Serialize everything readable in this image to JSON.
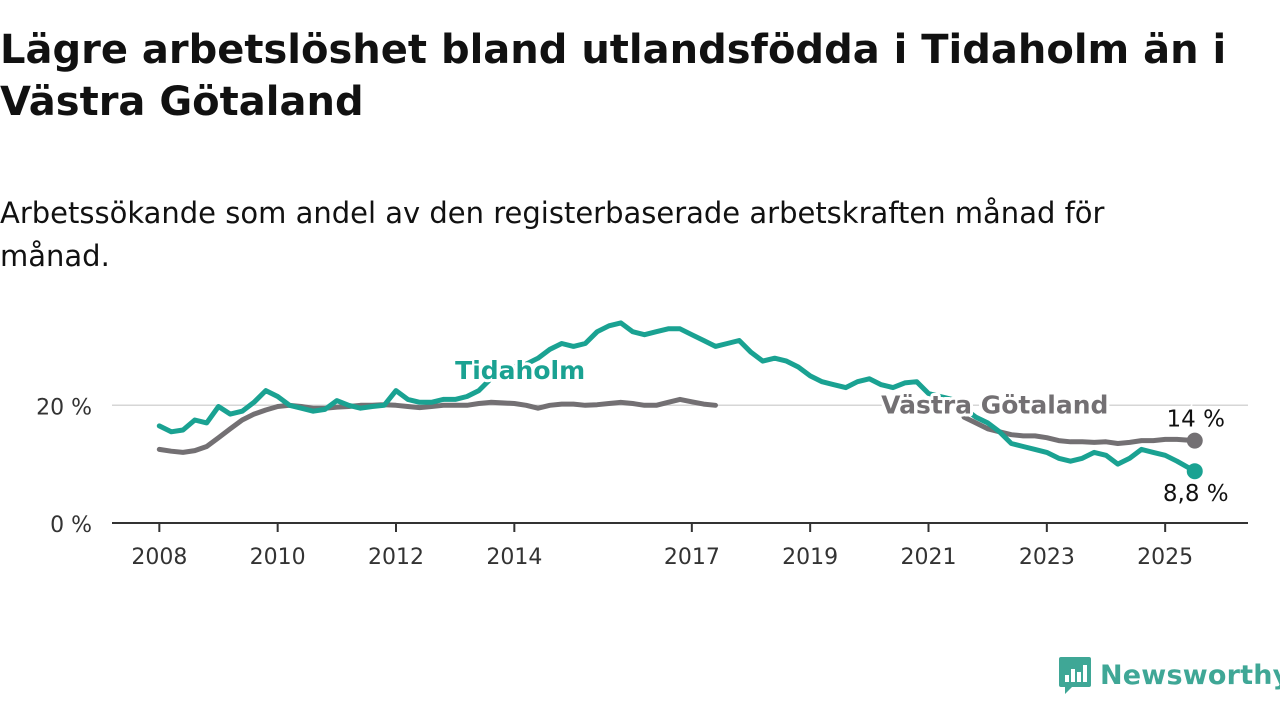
{
  "brand": {
    "name": "Newsworthy",
    "color": "#3fa796",
    "icon": "newsworthy-logo-icon"
  },
  "chart_data": {
    "type": "line",
    "title": "Lägre arbetslöshet bland utlandsfödda i Tidaholm än i Västra Götaland",
    "subtitle": "Arbetssökande som andel av den registerbaserade arbetskraften månad för månad.",
    "xlabel": "",
    "ylabel": "",
    "ylim": [
      0,
      35
    ],
    "y_ticks": [
      0,
      20
    ],
    "y_tick_labels": [
      "0 %",
      "20 %"
    ],
    "x_ticks": [
      2008,
      2010,
      2012,
      2014,
      2017,
      2019,
      2021,
      2023,
      2025
    ],
    "x_tick_labels": [
      "2008",
      "2010",
      "2012",
      "2014",
      "2017",
      "2019",
      "2021",
      "2023",
      "2025"
    ],
    "xlim": [
      2007.2,
      2026.4
    ],
    "grid": "horizontal",
    "legend": "inline labels",
    "series": [
      {
        "name": "Tidaholm",
        "color": "#1aa292",
        "end_label": "8,8 %",
        "points": [
          [
            2008.0,
            16.5
          ],
          [
            2008.2,
            15.5
          ],
          [
            2008.4,
            15.8
          ],
          [
            2008.6,
            17.5
          ],
          [
            2008.8,
            17.0
          ],
          [
            2009.0,
            19.8
          ],
          [
            2009.2,
            18.5
          ],
          [
            2009.4,
            19.0
          ],
          [
            2009.6,
            20.5
          ],
          [
            2009.8,
            22.5
          ],
          [
            2010.0,
            21.5
          ],
          [
            2010.2,
            20.0
          ],
          [
            2010.4,
            19.5
          ],
          [
            2010.6,
            19.0
          ],
          [
            2010.8,
            19.3
          ],
          [
            2011.0,
            20.8
          ],
          [
            2011.2,
            20.0
          ],
          [
            2011.4,
            19.5
          ],
          [
            2011.6,
            19.8
          ],
          [
            2011.8,
            20.0
          ],
          [
            2012.0,
            22.5
          ],
          [
            2012.2,
            21.0
          ],
          [
            2012.4,
            20.5
          ],
          [
            2012.6,
            20.5
          ],
          [
            2012.8,
            21.0
          ],
          [
            2013.0,
            21.0
          ],
          [
            2013.2,
            21.5
          ],
          [
            2013.4,
            22.5
          ],
          [
            2013.6,
            24.5
          ],
          [
            2013.8,
            26.0
          ],
          [
            2014.0,
            26.5
          ],
          [
            2014.2,
            27.0
          ],
          [
            2014.4,
            28.0
          ],
          [
            2014.6,
            29.5
          ],
          [
            2014.8,
            30.5
          ],
          [
            2015.0,
            30.0
          ],
          [
            2015.2,
            30.5
          ],
          [
            2015.4,
            32.5
          ],
          [
            2015.6,
            33.5
          ],
          [
            2015.8,
            34.0
          ],
          [
            2016.0,
            32.5
          ],
          [
            2016.2,
            32.0
          ],
          [
            2016.4,
            32.5
          ],
          [
            2016.6,
            33.0
          ],
          [
            2016.8,
            33.0
          ],
          [
            2017.0,
            32.0
          ],
          [
            2017.2,
            31.0
          ],
          [
            2017.4,
            30.0
          ],
          [
            2017.6,
            30.5
          ],
          [
            2017.8,
            31.0
          ],
          [
            2018.0,
            29.0
          ],
          [
            2018.2,
            27.5
          ],
          [
            2018.4,
            28.0
          ],
          [
            2018.6,
            27.5
          ],
          [
            2018.8,
            26.5
          ],
          [
            2019.0,
            25.0
          ],
          [
            2019.2,
            24.0
          ],
          [
            2019.4,
            23.5
          ],
          [
            2019.6,
            23.0
          ],
          [
            2019.8,
            24.0
          ],
          [
            2020.0,
            24.5
          ],
          [
            2020.2,
            23.5
          ],
          [
            2020.4,
            23.0
          ],
          [
            2020.6,
            23.8
          ],
          [
            2020.8,
            24.0
          ],
          [
            2021.0,
            22.0
          ],
          [
            2021.2,
            21.5
          ],
          [
            2021.4,
            21.0
          ],
          [
            2021.6,
            19.5
          ],
          [
            2021.8,
            18.0
          ],
          [
            2022.0,
            17.0
          ],
          [
            2022.2,
            15.5
          ],
          [
            2022.4,
            13.5
          ],
          [
            2022.6,
            13.0
          ],
          [
            2022.8,
            12.5
          ],
          [
            2023.0,
            12.0
          ],
          [
            2023.2,
            11.0
          ],
          [
            2023.4,
            10.5
          ],
          [
            2023.6,
            11.0
          ],
          [
            2023.8,
            12.0
          ],
          [
            2024.0,
            11.5
          ],
          [
            2024.2,
            10.0
          ],
          [
            2024.4,
            11.0
          ],
          [
            2024.6,
            12.5
          ],
          [
            2024.8,
            12.0
          ],
          [
            2025.0,
            11.5
          ],
          [
            2025.2,
            10.5
          ],
          [
            2025.5,
            8.8
          ]
        ]
      },
      {
        "name": "Västra Götaland",
        "color": "#737073",
        "end_label": "14 %",
        "points": [
          [
            2008.0,
            12.5
          ],
          [
            2008.2,
            12.2
          ],
          [
            2008.4,
            12.0
          ],
          [
            2008.6,
            12.3
          ],
          [
            2008.8,
            13.0
          ],
          [
            2009.0,
            14.5
          ],
          [
            2009.2,
            16.0
          ],
          [
            2009.4,
            17.5
          ],
          [
            2009.6,
            18.5
          ],
          [
            2009.8,
            19.2
          ],
          [
            2010.0,
            19.8
          ],
          [
            2010.2,
            20.0
          ],
          [
            2010.4,
            19.8
          ],
          [
            2010.6,
            19.5
          ],
          [
            2010.8,
            19.5
          ],
          [
            2011.0,
            19.7
          ],
          [
            2011.2,
            19.8
          ],
          [
            2011.4,
            20.0
          ],
          [
            2011.6,
            20.0
          ],
          [
            2011.8,
            20.1
          ],
          [
            2012.0,
            20.0
          ],
          [
            2012.2,
            19.8
          ],
          [
            2012.4,
            19.6
          ],
          [
            2012.6,
            19.8
          ],
          [
            2012.8,
            20.0
          ],
          [
            2013.0,
            20.0
          ],
          [
            2013.2,
            20.0
          ],
          [
            2013.4,
            20.3
          ],
          [
            2013.6,
            20.5
          ],
          [
            2013.8,
            20.4
          ],
          [
            2014.0,
            20.3
          ],
          [
            2014.2,
            20.0
          ],
          [
            2014.4,
            19.5
          ],
          [
            2014.6,
            20.0
          ],
          [
            2014.8,
            20.2
          ],
          [
            2015.0,
            20.2
          ],
          [
            2015.2,
            20.0
          ],
          [
            2015.4,
            20.1
          ],
          [
            2015.6,
            20.3
          ],
          [
            2015.8,
            20.5
          ],
          [
            2016.0,
            20.3
          ],
          [
            2016.2,
            20.0
          ],
          [
            2016.4,
            20.0
          ],
          [
            2016.6,
            20.5
          ],
          [
            2016.8,
            21.0
          ],
          [
            2017.0,
            20.6
          ],
          [
            2017.2,
            20.2
          ],
          [
            2017.4,
            20.0
          ],
          [
            2021.6,
            18.0
          ],
          [
            2021.8,
            17.0
          ],
          [
            2022.0,
            16.0
          ],
          [
            2022.2,
            15.5
          ],
          [
            2022.4,
            15.0
          ],
          [
            2022.6,
            14.8
          ],
          [
            2022.8,
            14.8
          ],
          [
            2023.0,
            14.5
          ],
          [
            2023.2,
            14.0
          ],
          [
            2023.4,
            13.8
          ],
          [
            2023.6,
            13.8
          ],
          [
            2023.8,
            13.7
          ],
          [
            2024.0,
            13.8
          ],
          [
            2024.2,
            13.5
          ],
          [
            2024.4,
            13.7
          ],
          [
            2024.6,
            14.0
          ],
          [
            2024.8,
            14.0
          ],
          [
            2025.0,
            14.2
          ],
          [
            2025.2,
            14.2
          ],
          [
            2025.5,
            14.0
          ]
        ]
      }
    ],
    "annotations": [
      {
        "series": "Tidaholm",
        "text": "Tidaholm",
        "at": [
          2013.0,
          24.5
        ]
      },
      {
        "series": "Västra Götaland",
        "text": "Västra Götaland",
        "at": [
          2020.2,
          18.6
        ]
      }
    ]
  }
}
